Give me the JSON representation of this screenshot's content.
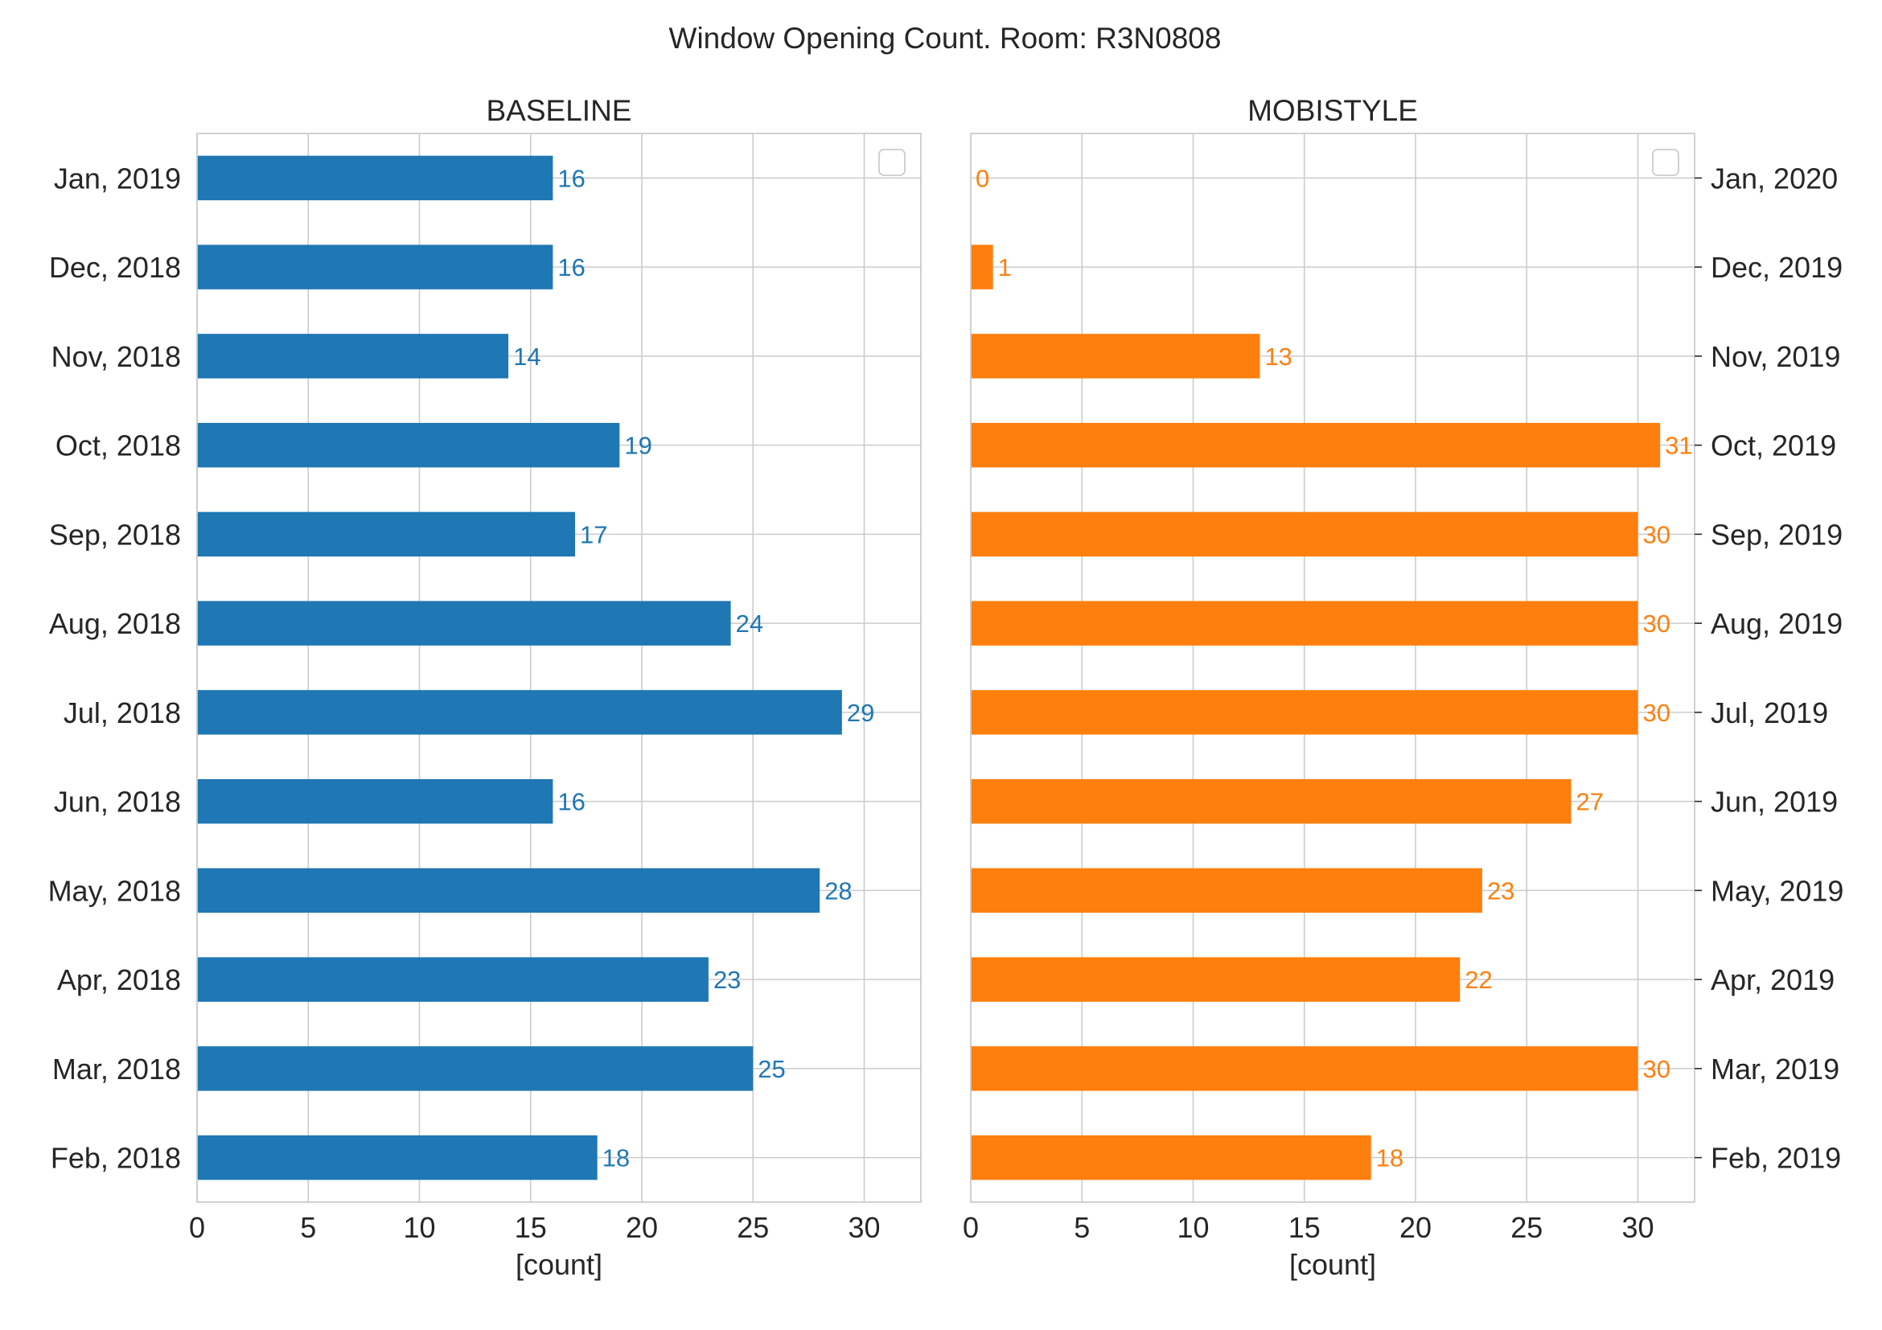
{
  "chart_data": {
    "type": "bar",
    "orientation": "horizontal",
    "title": "Window Opening Count. Room: R3N0808",
    "grid": true,
    "legend": "top-right, empty",
    "panels": [
      {
        "title": "BASELINE",
        "color": "#1f77b4",
        "category_axis_side": "left",
        "xlabel": "[count]",
        "xlim": [
          0,
          32.55
        ],
        "xticks": [
          0,
          5,
          10,
          15,
          20,
          25,
          30
        ],
        "categories": [
          "Jan, 2019",
          "Dec, 2018",
          "Nov, 2018",
          "Oct, 2018",
          "Sep, 2018",
          "Aug, 2018",
          "Jul, 2018",
          "Jun, 2018",
          "May, 2018",
          "Apr, 2018",
          "Mar, 2018",
          "Feb, 2018"
        ],
        "values": [
          16,
          16,
          14,
          19,
          17,
          24,
          29,
          16,
          28,
          23,
          25,
          18
        ]
      },
      {
        "title": "MOBISTYLE",
        "color": "#ff7f0e",
        "category_axis_side": "right",
        "xlabel": "[count]",
        "xlim": [
          0,
          32.55
        ],
        "xticks": [
          0,
          5,
          10,
          15,
          20,
          25,
          30
        ],
        "categories": [
          "Jan, 2020",
          "Dec, 2019",
          "Nov, 2019",
          "Oct, 2019",
          "Sep, 2019",
          "Aug, 2019",
          "Jul, 2019",
          "Jun, 2019",
          "May, 2019",
          "Apr, 2019",
          "Mar, 2019",
          "Feb, 2019"
        ],
        "values": [
          0,
          1,
          13,
          31,
          30,
          30,
          30,
          27,
          23,
          22,
          30,
          18
        ]
      }
    ]
  }
}
